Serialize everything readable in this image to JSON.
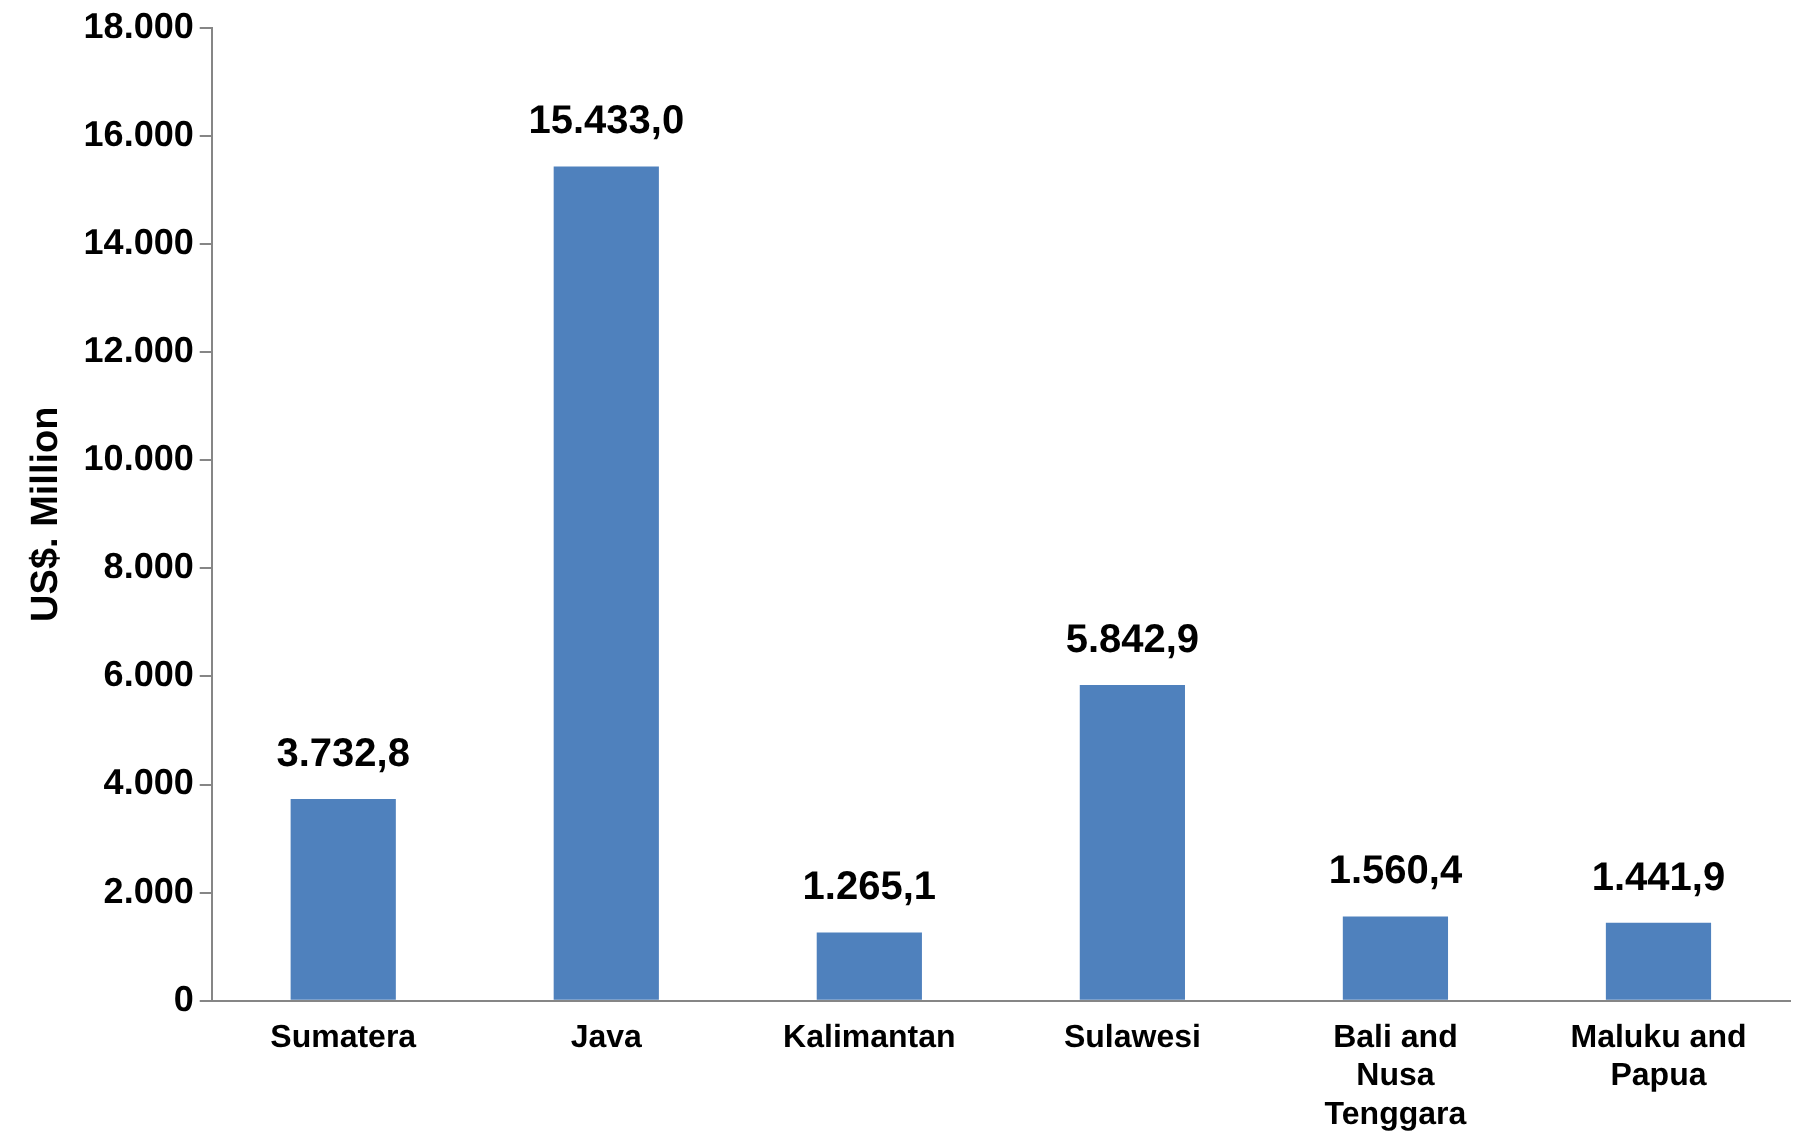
{
  "chart_data": {
    "type": "bar",
    "ylabel": "US$. Million",
    "categories": [
      "Sumatera",
      "Java",
      "Kalimantan",
      "Sulawesi",
      "Bali and Nusa Tenggara",
      "Maluku and Papua"
    ],
    "values": [
      3732.8,
      15433.0,
      1265.1,
      5842.9,
      1560.4,
      1441.9
    ],
    "value_labels": [
      "3.732,8",
      "15.433,0",
      "1.265,1",
      "5.842,9",
      "1.560,4",
      "1.441,9"
    ],
    "color": "#4f81bd",
    "ylim": [
      0,
      18000
    ],
    "yticks": [
      {
        "value": 0,
        "label": "0"
      },
      {
        "value": 2000,
        "label": "2.000"
      },
      {
        "value": 4000,
        "label": "4.000"
      },
      {
        "value": 6000,
        "label": "6.000"
      },
      {
        "value": 8000,
        "label": "8.000"
      },
      {
        "value": 10000,
        "label": "10.000"
      },
      {
        "value": 12000,
        "label": "12.000"
      },
      {
        "value": 14000,
        "label": "14.000"
      },
      {
        "value": 16000,
        "label": "16.000"
      },
      {
        "value": 18000,
        "label": "18.000"
      }
    ],
    "grid": false,
    "legend": false
  }
}
